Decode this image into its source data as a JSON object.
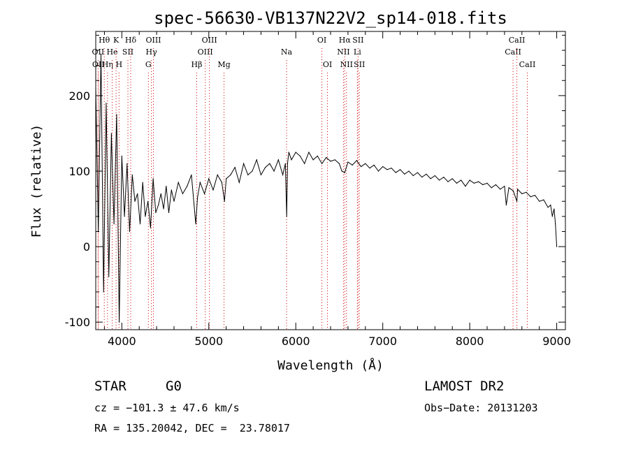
{
  "chart_data": {
    "type": "line",
    "title": "spec-56630-VB137N22V2_sp14-018.fits",
    "xlabel": "Wavelength (Å)",
    "ylabel": "Flux (relative)",
    "xlim": [
      3700,
      9100
    ],
    "ylim": [
      -110,
      285
    ],
    "xticks": [
      4000,
      5000,
      6000,
      7000,
      8000,
      9000
    ],
    "yticks": [
      -100,
      0,
      100,
      200
    ],
    "grid": false,
    "line_color": "#000000",
    "marker_color": "#cc0000",
    "series": [
      {
        "x": [
          3700,
          3730,
          3760,
          3790,
          3820,
          3850,
          3880,
          3910,
          3940,
          3970,
          4000,
          4030,
          4060,
          4090,
          4120,
          4150,
          4180,
          4210,
          4240,
          4270,
          4300,
          4330,
          4360,
          4390,
          4420,
          4450,
          4480,
          4510,
          4540,
          4570,
          4600,
          4650,
          4700,
          4750,
          4800,
          4850,
          4870,
          4900,
          4950,
          5000,
          5050,
          5100,
          5150,
          5180,
          5200,
          5250,
          5300,
          5350,
          5400,
          5450,
          5500,
          5550,
          5600,
          5650,
          5700,
          5750,
          5800,
          5850,
          5880,
          5895,
          5905,
          5920,
          5950,
          6000,
          6050,
          6100,
          6150,
          6200,
          6250,
          6300,
          6350,
          6400,
          6450,
          6500,
          6530,
          6563,
          6600,
          6650,
          6700,
          6750,
          6800,
          6850,
          6900,
          6950,
          7000,
          7050,
          7100,
          7150,
          7200,
          7250,
          7300,
          7350,
          7400,
          7450,
          7500,
          7550,
          7600,
          7650,
          7700,
          7750,
          7800,
          7850,
          7900,
          7950,
          8000,
          8050,
          8100,
          8150,
          8200,
          8250,
          8300,
          8350,
          8400,
          8420,
          8450,
          8500,
          8542,
          8550,
          8600,
          8650,
          8700,
          8750,
          8800,
          8850,
          8900,
          8930,
          8950,
          8970,
          8985,
          9000
        ],
        "y": [
          210,
          20,
          255,
          -60,
          190,
          -40,
          150,
          30,
          175,
          -100,
          120,
          40,
          110,
          20,
          95,
          60,
          70,
          30,
          85,
          40,
          60,
          25,
          90,
          45,
          55,
          70,
          50,
          80,
          45,
          75,
          60,
          85,
          70,
          80,
          95,
          30,
          65,
          85,
          70,
          90,
          75,
          95,
          85,
          60,
          90,
          95,
          105,
          85,
          110,
          95,
          100,
          115,
          95,
          105,
          110,
          100,
          115,
          95,
          110,
          40,
          110,
          125,
          115,
          125,
          120,
          110,
          125,
          115,
          120,
          110,
          118,
          113,
          115,
          110,
          100,
          98,
          112,
          108,
          114,
          106,
          110,
          104,
          108,
          100,
          106,
          102,
          104,
          98,
          102,
          96,
          100,
          94,
          98,
          92,
          96,
          90,
          94,
          88,
          92,
          86,
          90,
          84,
          88,
          80,
          88,
          84,
          86,
          82,
          84,
          78,
          82,
          76,
          80,
          55,
          78,
          74,
          60,
          76,
          70,
          72,
          66,
          68,
          60,
          62,
          52,
          55,
          40,
          50,
          30,
          0
        ]
      }
    ],
    "lines": [
      {
        "label": "Hθ",
        "x": 3798,
        "row": 1
      },
      {
        "label": "Hη",
        "x": 3835,
        "row": 3
      },
      {
        "label": "OII",
        "x": 3727,
        "row": 2
      },
      {
        "label": "OII",
        "x": 3730,
        "row": 3
      },
      {
        "label": "He",
        "x": 3889,
        "row": 2
      },
      {
        "label": "K",
        "x": 3934,
        "row": 1
      },
      {
        "label": "H",
        "x": 3968,
        "row": 3
      },
      {
        "label": "SII",
        "x": 4070,
        "row": 2
      },
      {
        "label": "Hδ",
        "x": 4102,
        "row": 1
      },
      {
        "label": "OIII",
        "x": 4363,
        "row": 1
      },
      {
        "label": "Hγ",
        "x": 4340,
        "row": 2
      },
      {
        "label": "G",
        "x": 4305,
        "row": 3
      },
      {
        "label": "Hβ",
        "x": 4861,
        "row": 3
      },
      {
        "label": "OIII",
        "x": 5007,
        "row": 1
      },
      {
        "label": "OIII",
        "x": 4959,
        "row": 2
      },
      {
        "label": "Mg",
        "x": 5175,
        "row": 3
      },
      {
        "label": "Na",
        "x": 5894,
        "row": 2
      },
      {
        "label": "OI",
        "x": 6300,
        "row": 1
      },
      {
        "label": "OI",
        "x": 6364,
        "row": 3
      },
      {
        "label": "Hα",
        "x": 6563,
        "row": 1
      },
      {
        "label": "NII",
        "x": 6548,
        "row": 2
      },
      {
        "label": "NII",
        "x": 6583,
        "row": 3
      },
      {
        "label": "SII",
        "x": 6716,
        "row": 1
      },
      {
        "label": "SII",
        "x": 6731,
        "row": 3
      },
      {
        "label": "Li",
        "x": 6708,
        "row": 2
      },
      {
        "label": "CaII",
        "x": 8498,
        "row": 2
      },
      {
        "label": "CaII",
        "x": 8542,
        "row": 1
      },
      {
        "label": "CaII",
        "x": 8662,
        "row": 3
      }
    ]
  },
  "info": {
    "class": "STAR",
    "subclass": "G0",
    "survey": "LAMOST DR2",
    "cz": "cz = −101.3 ± 47.6 km/s",
    "obs_date": "Obs−Date: 20131203",
    "radec": "RA = 135.20042, DEC =  23.78017"
  }
}
